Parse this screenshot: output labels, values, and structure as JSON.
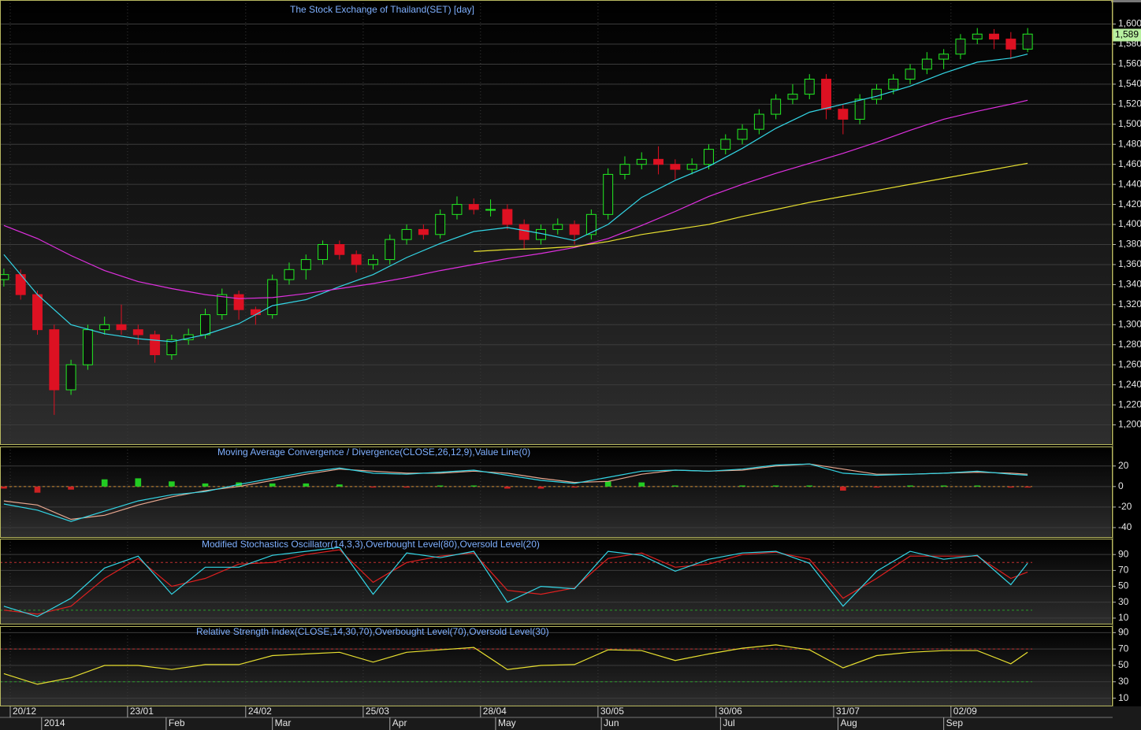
{
  "chart_data": [
    {
      "type": "candlestick",
      "title": "The Stock Exchange of Thailand(SET) [day]",
      "x": [
        0,
        1,
        2,
        3,
        4,
        5,
        6,
        7,
        8,
        9,
        10,
        11,
        12,
        13,
        14,
        15,
        16,
        17,
        18,
        19,
        20,
        21,
        22,
        23,
        24,
        25,
        26,
        27,
        28,
        29,
        30,
        31,
        32,
        33,
        34,
        35,
        36,
        37,
        38,
        39,
        40,
        41,
        42,
        43,
        44,
        45,
        46,
        47,
        48,
        49,
        50,
        51,
        52,
        53,
        54,
        55,
        56,
        57,
        58,
        59,
        60,
        61
      ],
      "open": [
        1345,
        1350,
        1330,
        1295,
        1235,
        1260,
        1295,
        1300,
        1295,
        1290,
        1270,
        1285,
        1290,
        1310,
        1330,
        1315,
        1310,
        1345,
        1355,
        1365,
        1380,
        1370,
        1360,
        1365,
        1385,
        1395,
        1390,
        1410,
        1420,
        1415,
        1415,
        1400,
        1385,
        1395,
        1400,
        1390,
        1410,
        1450,
        1460,
        1465,
        1460,
        1455,
        1460,
        1475,
        1485,
        1495,
        1510,
        1525,
        1530,
        1545,
        1515,
        1505,
        1525,
        1535,
        1545,
        1555,
        1565,
        1570,
        1585,
        1590,
        1585,
        1575
      ],
      "high": [
        1356,
        1355,
        1334,
        1300,
        1265,
        1300,
        1308,
        1320,
        1300,
        1294,
        1290,
        1296,
        1316,
        1336,
        1334,
        1318,
        1350,
        1362,
        1370,
        1384,
        1384,
        1374,
        1370,
        1390,
        1400,
        1400,
        1415,
        1428,
        1426,
        1425,
        1420,
        1405,
        1400,
        1406,
        1404,
        1415,
        1456,
        1468,
        1472,
        1478,
        1465,
        1466,
        1480,
        1490,
        1500,
        1515,
        1530,
        1540,
        1550,
        1550,
        1520,
        1530,
        1540,
        1550,
        1560,
        1572,
        1575,
        1590,
        1596,
        1595,
        1592,
        1596
      ],
      "low": [
        1338,
        1325,
        1290,
        1210,
        1230,
        1255,
        1290,
        1290,
        1280,
        1262,
        1265,
        1280,
        1286,
        1305,
        1305,
        1300,
        1306,
        1340,
        1345,
        1360,
        1365,
        1352,
        1355,
        1360,
        1380,
        1385,
        1386,
        1405,
        1410,
        1408,
        1395,
        1375,
        1380,
        1390,
        1380,
        1385,
        1405,
        1445,
        1455,
        1450,
        1445,
        1450,
        1455,
        1470,
        1480,
        1490,
        1505,
        1520,
        1525,
        1505,
        1490,
        1500,
        1520,
        1530,
        1540,
        1550,
        1555,
        1565,
        1580,
        1575,
        1565,
        1572
      ],
      "close": [
        1350,
        1330,
        1295,
        1235,
        1260,
        1295,
        1300,
        1295,
        1290,
        1270,
        1285,
        1290,
        1310,
        1330,
        1315,
        1310,
        1345,
        1355,
        1365,
        1380,
        1370,
        1360,
        1365,
        1385,
        1395,
        1390,
        1410,
        1420,
        1415,
        1415,
        1400,
        1385,
        1395,
        1400,
        1390,
        1410,
        1450,
        1460,
        1465,
        1460,
        1455,
        1460,
        1475,
        1485,
        1495,
        1510,
        1525,
        1530,
        1545,
        1515,
        1505,
        1525,
        1535,
        1545,
        1555,
        1565,
        1570,
        1585,
        1590,
        1585,
        1575,
        1590
      ],
      "up_color": "#22ee22",
      "down_color": "#dd1122",
      "overlays": [
        {
          "color": "#33d6e6",
          "x": [
            0,
            2,
            4,
            6,
            8,
            10,
            12,
            14,
            16,
            18,
            20,
            22,
            24,
            26,
            28,
            30,
            32,
            34,
            36,
            38,
            40,
            42,
            44,
            46,
            48,
            50,
            52,
            54,
            56,
            58,
            60,
            61
          ],
          "values": [
            1370,
            1330,
            1300,
            1291,
            1286,
            1283,
            1290,
            1301,
            1319,
            1325,
            1338,
            1350,
            1367,
            1381,
            1393,
            1397,
            1391,
            1384,
            1400,
            1427,
            1444,
            1458,
            1476,
            1496,
            1512,
            1520,
            1528,
            1538,
            1551,
            1562,
            1566,
            1570
          ]
        },
        {
          "color": "#e030e0",
          "x": [
            0,
            2,
            4,
            6,
            8,
            10,
            12,
            14,
            16,
            18,
            20,
            22,
            24,
            26,
            28,
            30,
            32,
            34,
            36,
            38,
            40,
            42,
            44,
            46,
            48,
            50,
            52,
            54,
            56,
            58,
            60,
            61
          ],
          "values": [
            1399,
            1386,
            1369,
            1354,
            1343,
            1336,
            1330,
            1326,
            1327,
            1331,
            1336,
            1341,
            1347,
            1354,
            1360,
            1366,
            1371,
            1377,
            1386,
            1399,
            1413,
            1428,
            1440,
            1451,
            1461,
            1471,
            1482,
            1494,
            1505,
            1513,
            1520,
            1524
          ]
        },
        {
          "color": "#e8e030",
          "x": [
            0,
            2,
            4,
            6,
            8,
            10,
            12,
            14,
            16,
            18,
            20,
            22,
            24,
            26,
            28,
            30,
            32,
            34,
            36,
            38,
            40,
            42,
            44,
            46,
            48,
            50,
            52,
            54,
            56,
            58,
            60,
            61
          ],
          "values": [
            null,
            null,
            null,
            null,
            null,
            null,
            null,
            null,
            null,
            null,
            null,
            null,
            null,
            null,
            1373,
            1375,
            1376,
            1378,
            1383,
            1390,
            1395,
            1400,
            1408,
            1415,
            1422,
            1428,
            1434,
            1440,
            1446,
            1452,
            1458,
            1461
          ]
        }
      ],
      "last_price": {
        "value": 1589,
        "label": "1,589"
      },
      "ylim": [
        1180,
        1624
      ],
      "yticks": [
        {
          "value": 1200,
          "label": "1,200"
        },
        {
          "value": 1220,
          "label": "1,220"
        },
        {
          "value": 1240,
          "label": "1,240"
        },
        {
          "value": 1260,
          "label": "1,260"
        },
        {
          "value": 1280,
          "label": "1,280"
        },
        {
          "value": 1300,
          "label": "1,300"
        },
        {
          "value": 1320,
          "label": "1,320"
        },
        {
          "value": 1340,
          "label": "1,340"
        },
        {
          "value": 1360,
          "label": "1,360"
        },
        {
          "value": 1380,
          "label": "1,380"
        },
        {
          "value": 1400,
          "label": "1,400"
        },
        {
          "value": 1420,
          "label": "1,420"
        },
        {
          "value": 1440,
          "label": "1,440"
        },
        {
          "value": 1460,
          "label": "1,460"
        },
        {
          "value": 1480,
          "label": "1,480"
        },
        {
          "value": 1500,
          "label": "1,500"
        },
        {
          "value": 1520,
          "label": "1,520"
        },
        {
          "value": 1540,
          "label": "1,540"
        },
        {
          "value": 1560,
          "label": "1,560"
        },
        {
          "value": 1580,
          "label": "1,580"
        },
        {
          "value": 1600,
          "label": "1,600"
        }
      ],
      "xlim": [
        -0.23,
        65.97
      ],
      "xticks": [
        {
          "value": 0.38,
          "label": "20/12"
        },
        {
          "value": 7.37,
          "label": "23/01"
        },
        {
          "value": 14.41,
          "label": "24/02"
        },
        {
          "value": 21.41,
          "label": "25/03"
        },
        {
          "value": 28.4,
          "label": "28/04"
        },
        {
          "value": 35.4,
          "label": "30/05"
        },
        {
          "value": 42.44,
          "label": "30/06"
        },
        {
          "value": 49.44,
          "label": "31/07"
        },
        {
          "value": 56.43,
          "label": "02/09"
        }
      ],
      "month_ticks": [
        {
          "value": 2.25,
          "label": "2014"
        },
        {
          "value": 9.67,
          "label": "Feb"
        },
        {
          "value": 16.0,
          "label": "Mar"
        },
        {
          "value": 23.0,
          "label": "Apr"
        },
        {
          "value": 29.3,
          "label": "May"
        },
        {
          "value": 35.6,
          "label": "Jun"
        },
        {
          "value": 42.7,
          "label": "Jul"
        },
        {
          "value": 49.7,
          "label": "Aug"
        },
        {
          "value": 56.0,
          "label": "Sep"
        }
      ]
    },
    {
      "type": "line",
      "title": "Moving Average Convergence / Divergence(CLOSE,26,12,9),Value Line(0)",
      "x": [
        0,
        2,
        4,
        6,
        8,
        10,
        12,
        14,
        16,
        18,
        20,
        22,
        24,
        26,
        28,
        30,
        32,
        34,
        36,
        38,
        40,
        42,
        44,
        46,
        48,
        50,
        52,
        54,
        56,
        58,
        60,
        61
      ],
      "series": [
        {
          "color": "#e8a890",
          "values": [
            -14,
            -18,
            -32,
            -28,
            -18,
            -10,
            -4,
            0,
            6,
            12,
            17,
            15,
            13,
            13,
            15,
            13,
            8,
            4,
            5,
            12,
            16,
            15,
            16,
            20,
            22,
            17,
            12,
            12,
            13,
            14,
            13,
            12
          ]
        },
        {
          "color": "#33d6e6",
          "values": [
            -17,
            -23,
            -34,
            -24,
            -14,
            -8,
            -5,
            2,
            8,
            14,
            18,
            13,
            12,
            14,
            16,
            11,
            6,
            3,
            9,
            15,
            16,
            15,
            17,
            21,
            22,
            13,
            11,
            12,
            13,
            15,
            12,
            11
          ]
        }
      ],
      "histogram": {
        "values": [
          -2,
          -6,
          -3,
          7,
          8,
          5,
          3,
          4,
          3,
          3,
          2,
          -1,
          -1,
          1,
          1,
          -2,
          -2,
          -1,
          5,
          4,
          1,
          0,
          1,
          1,
          1,
          -4,
          -1,
          1,
          1,
          1,
          -1,
          -1
        ],
        "up_color": "#22cc22",
        "down_color": "#cc2222"
      },
      "levels": [
        {
          "value": 0,
          "color": "#d08a30"
        }
      ],
      "ylim": [
        -50,
        39
      ],
      "yticks": [
        -40,
        -20,
        0,
        20
      ]
    },
    {
      "type": "line",
      "title": "Modified Stochastics Oscillator(14,3,3),Overbought Level(80),Oversold Level(20)",
      "x": [
        0,
        2,
        4,
        6,
        8,
        10,
        12,
        14,
        16,
        18,
        20,
        22,
        24,
        26,
        28,
        30,
        32,
        34,
        36,
        38,
        40,
        42,
        44,
        46,
        48,
        50,
        52,
        54,
        56,
        58,
        60,
        61
      ],
      "series": [
        {
          "color": "#e02020",
          "values": [
            20,
            15,
            25,
            60,
            85,
            50,
            60,
            78,
            80,
            90,
            96,
            55,
            80,
            88,
            92,
            45,
            40,
            48,
            85,
            92,
            74,
            78,
            90,
            93,
            84,
            35,
            60,
            88,
            88,
            88,
            60,
            68
          ]
        },
        {
          "color": "#33d6e6",
          "values": [
            25,
            12,
            35,
            73,
            88,
            40,
            74,
            74,
            89,
            94,
            99,
            40,
            92,
            86,
            94,
            30,
            50,
            47,
            94,
            89,
            69,
            84,
            92,
            94,
            79,
            25,
            69,
            94,
            84,
            89,
            52,
            79
          ]
        }
      ],
      "levels": [
        {
          "value": 80,
          "color": "#c03030"
        },
        {
          "value": 20,
          "color": "#2a9a2a"
        }
      ],
      "ylim": [
        2,
        110
      ],
      "yticks": [
        10,
        30,
        50,
        70,
        90
      ]
    },
    {
      "type": "line",
      "title": "Relative Strength Index(CLOSE,14,30,70),Overbought Level(70),Oversold Level(30)",
      "x": [
        0,
        2,
        4,
        6,
        8,
        10,
        12,
        14,
        16,
        18,
        20,
        22,
        24,
        26,
        28,
        30,
        32,
        34,
        36,
        38,
        40,
        42,
        44,
        46,
        48,
        50,
        52,
        54,
        56,
        58,
        60,
        61
      ],
      "series": [
        {
          "color": "#e8e030",
          "values": [
            40,
            27,
            35,
            50,
            50,
            45,
            51,
            51,
            62,
            64,
            66,
            54,
            66,
            69,
            72,
            45,
            50,
            51,
            69,
            68,
            56,
            64,
            71,
            75,
            69,
            47,
            62,
            66,
            68,
            68,
            52,
            66
          ]
        }
      ],
      "levels": [
        {
          "value": 70,
          "color": "#c03030"
        },
        {
          "value": 30,
          "color": "#2a9a2a"
        }
      ],
      "ylim": [
        0,
        98
      ],
      "yticks": [
        10,
        30,
        50,
        70,
        90
      ]
    }
  ]
}
